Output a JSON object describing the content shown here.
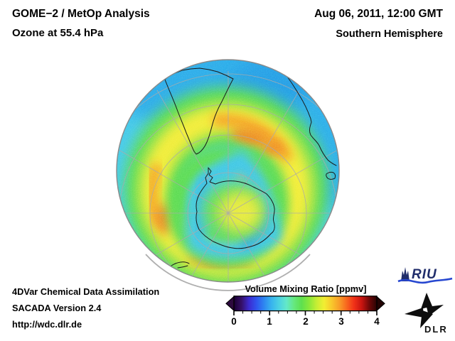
{
  "header": {
    "title_line1": "GOME−2 / MetOp Analysis",
    "title_line2": "Ozone at 55.4 hPa",
    "date_line": "Aug 06, 2011, 12:00 GMT",
    "region_line": "Southern Hemisphere"
  },
  "footer": {
    "line1": "4DVar Chemical Data Assimilation",
    "line2": "SACADA Version 2.4",
    "line3": "http://wdc.dlr.de"
  },
  "colorbar": {
    "title": "Volume Mixing Ratio [ppmv]",
    "ticks": [
      "0",
      "1",
      "2",
      "3",
      "4"
    ],
    "range": [
      0,
      4
    ],
    "minor_tick_interval": 0.25,
    "gradient": [
      "#1a0033",
      "#351066",
      "#3c2bd0",
      "#2f55ee",
      "#2e86f0",
      "#38b4ee",
      "#4cd2e2",
      "#63e8c9",
      "#66e87e",
      "#5ee04e",
      "#8ae83a",
      "#c6ee34",
      "#f2ee32",
      "#f8c82c",
      "#f89e28",
      "#f8661e",
      "#f03018",
      "#c81410",
      "#6e0808",
      "#2a0404"
    ],
    "arrow_left_color": "#2d0a3e",
    "arrow_right_color": "#230404"
  },
  "globe": {
    "view": "Southern Hemisphere orthographic globe centered near the South Pole",
    "visible_features": [
      "South America",
      "Antarctica",
      "Australia with Tasmania",
      "New Zealand",
      "graticule lines",
      "gray limb"
    ],
    "palette": {
      "ocean_base_cyan": "#44c6ea",
      "tropical_blue": "#2da6e8",
      "green_band": "#57da4e",
      "yellow_band": "#f2ec38",
      "orange_band": "#f59d28",
      "vortex_cyan": "#3fc3e6",
      "vortex_deep_blue": "#2f9ce2",
      "core_yellow": "#e4e93e"
    }
  },
  "logos": {
    "riu_label": "RIU",
    "dlr_label": "DLR"
  },
  "chart_data": {
    "type": "heatmap",
    "title": "Ozone volume mixing ratio at 55.4 hPa over the Southern Hemisphere",
    "colorbar": {
      "label": "Volume Mixing Ratio [ppmv]",
      "range": [
        0,
        4
      ],
      "tick_labels": [
        "0",
        "1",
        "2",
        "3",
        "4"
      ],
      "minor_tick_interval": 0.25
    },
    "approx_field_values_ppmv": {
      "equatorward_limb_blue_cyan_band": 1.4,
      "midlatitude_green_ring": 2.0,
      "subpolar_yellow_band": 2.7,
      "orange_spiral_maxima": 3.0,
      "polar_vortex_cyan_ring": 1.5,
      "vortex_interior_yellow_green_core": 2.3
    }
  }
}
